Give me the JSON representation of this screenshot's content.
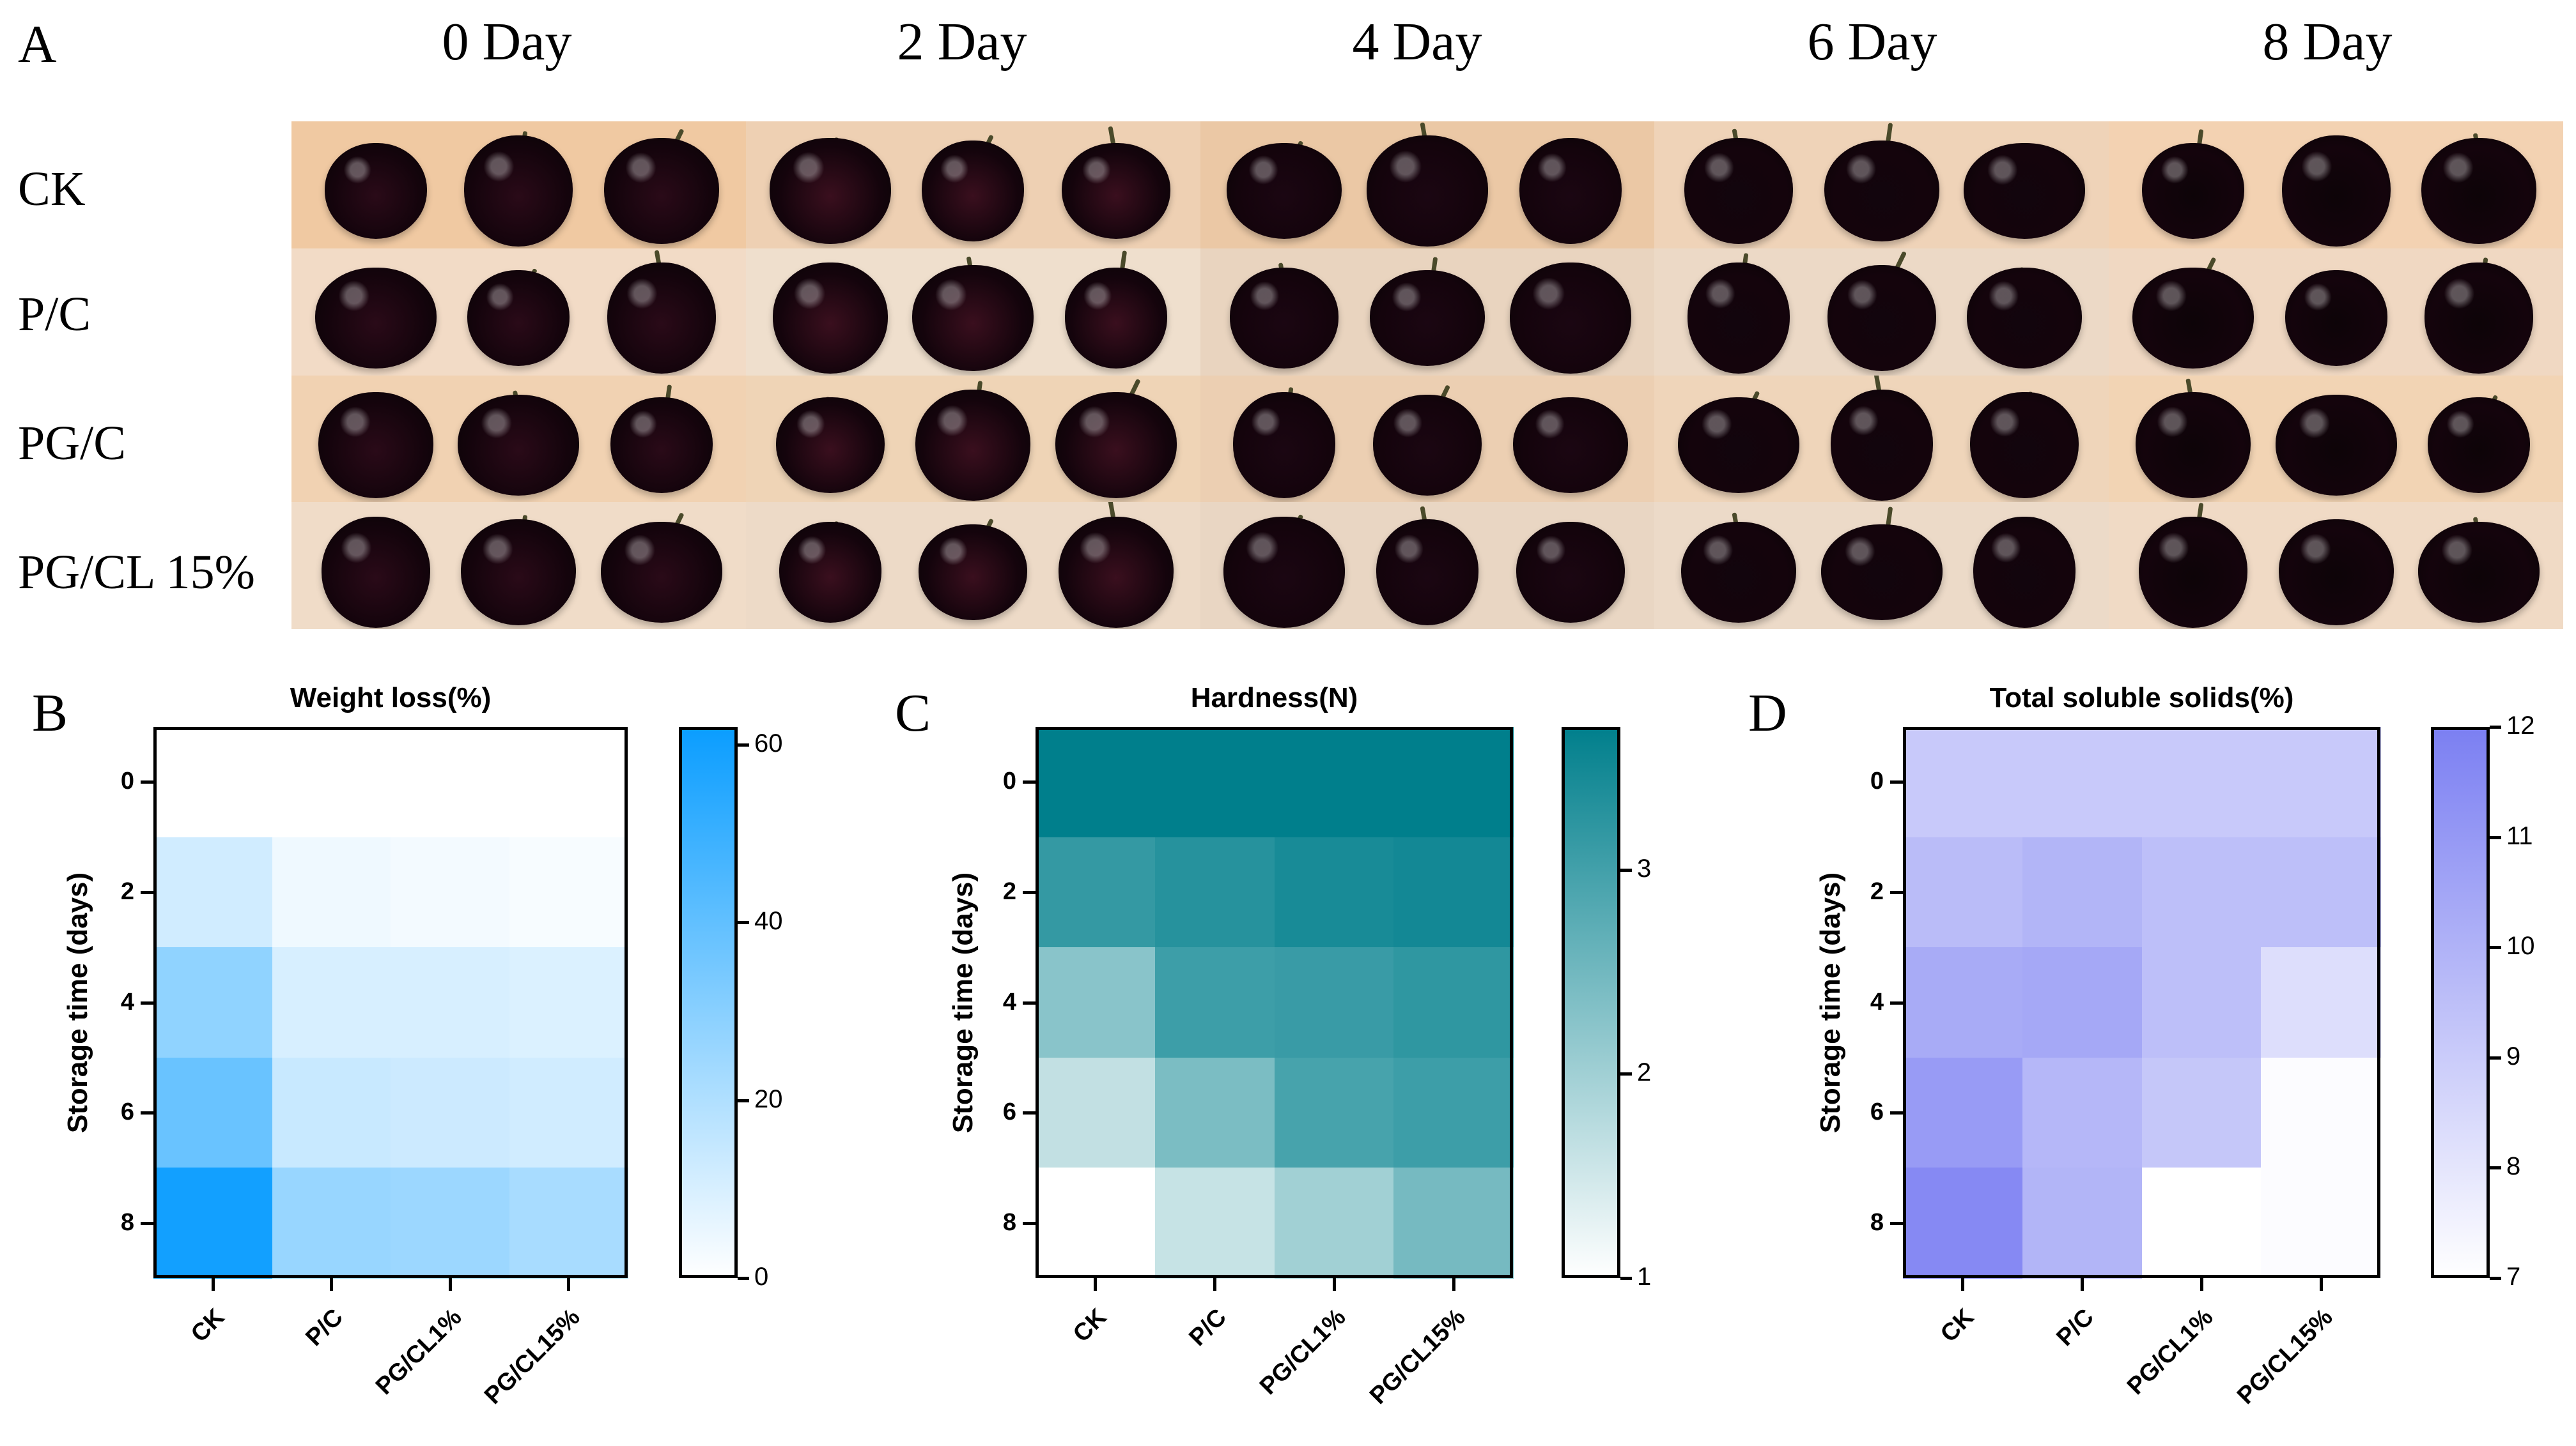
{
  "panel_a": {
    "letter": "A",
    "days": [
      "0 Day",
      "2 Day",
      "4 Day",
      "6 Day",
      "8 Day"
    ],
    "groups": [
      "CK",
      "P/C",
      "PG/C",
      "PG/CL 15%"
    ]
  },
  "chart_data": [
    {
      "panel": "B",
      "type": "heatmap",
      "title": "Weight loss(%)",
      "ylabel": "Storage time (days)",
      "xlabel": "",
      "x": [
        "CK",
        "P/C",
        "PG/CL1%",
        "PG/CL15%"
      ],
      "y": [
        0,
        2,
        4,
        6,
        8
      ],
      "values": [
        [
          0,
          0,
          0,
          0
        ],
        [
          12,
          4,
          3,
          2
        ],
        [
          28,
          10,
          10,
          9
        ],
        [
          38,
          14,
          13,
          12
        ],
        [
          60,
          26,
          25,
          22
        ]
      ],
      "colorbar": {
        "min": 0,
        "max": 62,
        "ticks": [
          0,
          20,
          40,
          60
        ],
        "low_color": "#ffffff",
        "high_color": "#0a9dff"
      }
    },
    {
      "panel": "C",
      "type": "heatmap",
      "title": "Hardness(N)",
      "ylabel": "Storage time (days)",
      "xlabel": "",
      "x": [
        "CK",
        "P/C",
        "PG/CL1%",
        "PG/CL15%"
      ],
      "y": [
        0,
        2,
        4,
        6,
        8
      ],
      "values": [
        [
          3.7,
          3.7,
          3.7,
          3.7
        ],
        [
          3.15,
          3.3,
          3.45,
          3.5
        ],
        [
          2.25,
          3.05,
          3.1,
          3.2
        ],
        [
          1.65,
          2.4,
          2.95,
          3.05
        ],
        [
          1.0,
          1.6,
          2.0,
          2.45
        ]
      ],
      "colorbar": {
        "min": 1,
        "max": 3.7,
        "ticks": [
          1,
          2,
          3
        ],
        "low_color": "#ffffff",
        "high_color": "#007f8c"
      }
    },
    {
      "panel": "D",
      "type": "heatmap",
      "title": "Total soluble solids(%)",
      "ylabel": "Storage time (days)",
      "xlabel": "",
      "x": [
        "CK",
        "P/C",
        "PG/CL1%",
        "PG/CL15%"
      ],
      "y": [
        0,
        2,
        4,
        6,
        8
      ],
      "values": [
        [
          9.1,
          9.1,
          9.1,
          9.1
        ],
        [
          9.6,
          9.9,
          9.5,
          9.5
        ],
        [
          10.3,
          10.4,
          9.5,
          8.3
        ],
        [
          10.9,
          9.8,
          9.2,
          7.1
        ],
        [
          11.6,
          9.9,
          7.0,
          7.1
        ]
      ],
      "colorbar": {
        "min": 7,
        "max": 12,
        "ticks": [
          7,
          8,
          9,
          10,
          11,
          12
        ],
        "low_color": "#ffffff",
        "high_color": "#7b7ff2"
      }
    }
  ],
  "colors": {
    "photo_bg_warm": "#efcfb0",
    "photo_bg_light": "#f1e6d8",
    "cherry_dark": "#1e0612"
  }
}
